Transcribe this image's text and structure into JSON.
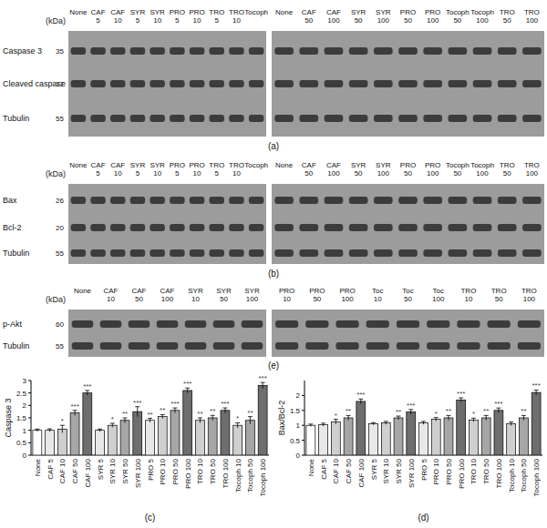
{
  "blots": [
    {
      "panel": "(a)",
      "kda_header": "(kDa)",
      "rows": [
        {
          "name": "Caspase 3",
          "kda": 35
        },
        {
          "name": "Cleaved caspase 3",
          "kda": 17
        },
        {
          "name": "Tubulin",
          "kda": 55
        }
      ],
      "lanes_left": [
        "None",
        "CAF 5",
        "CAF 10",
        "SYR 5",
        "SYR 10",
        "PRO 5",
        "PRO 10",
        "TRO 5",
        "TRO 10",
        "Tocoph"
      ],
      "lanes_right": [
        "None",
        "CAF 50",
        "CAF 100",
        "SYR 50",
        "SYR 100",
        "PRO 50",
        "PRO 100",
        "Tocoph 50",
        "Tocoph 100",
        "TRO 50",
        "TRO 100"
      ]
    },
    {
      "panel": "(b)",
      "kda_header": "(kDa)",
      "rows": [
        {
          "name": "Bax",
          "kda": 26
        },
        {
          "name": "Bcl-2",
          "kda": 20
        },
        {
          "name": "Tubulin",
          "kda": 55
        }
      ],
      "lanes_left": [
        "None",
        "CAF 5",
        "CAF 10",
        "SYR 5",
        "SYR 10",
        "PRO 5",
        "PRO 10",
        "TRO 5",
        "TRO 10",
        "Tocoph"
      ],
      "lanes_right": [
        "None",
        "CAF 50",
        "CAF 100",
        "SYR 50",
        "SYR 100",
        "PRO 50",
        "PRO 100",
        "Tocoph 50",
        "Tocoph 100",
        "TRO 50",
        "TRO 100"
      ]
    },
    {
      "panel": "(e)",
      "kda_header": "(kDa)",
      "rows": [
        {
          "name": "p-Akt",
          "kda": 60
        },
        {
          "name": "Tubulin",
          "kda": 55
        }
      ],
      "lanes_left": [
        "None",
        "CAF 10",
        "CAF 50",
        "CAF 100",
        "SYR 10",
        "SYR 50",
        "SYR 100"
      ],
      "lanes_right": [
        "PRO 10",
        "PRO 50",
        "PRO 100",
        "Toc 10",
        "Toc 50",
        "Toc 100",
        "TRO 10",
        "TRO 50",
        "TRO 100"
      ]
    }
  ],
  "chart_data": [
    {
      "type": "bar",
      "title": "(c)",
      "y_label": "Caspase 3",
      "categories": [
        "None",
        "CAF 5",
        "CAF 10",
        "CAF 50",
        "CAF 100",
        "SYR 5",
        "SYR 10",
        "SYR 50",
        "SYR 100",
        "PRO 5",
        "PRO 10",
        "PRO 50",
        "PRO 100",
        "TRO 10",
        "TRO 50",
        "TRO 100",
        "Tocoph 10",
        "Tocoph 50",
        "Tocoph 100"
      ],
      "values": [
        1.0,
        1.0,
        1.05,
        1.7,
        2.5,
        1.0,
        1.2,
        1.4,
        1.75,
        1.4,
        1.55,
        1.8,
        2.6,
        1.4,
        1.5,
        1.8,
        1.2,
        1.4,
        2.8
      ],
      "errors": [
        0.05,
        0.06,
        0.15,
        0.1,
        0.1,
        0.05,
        0.08,
        0.1,
        0.2,
        0.08,
        0.08,
        0.1,
        0.1,
        0.1,
        0.1,
        0.1,
        0.1,
        0.15,
        0.12
      ],
      "significance": [
        null,
        null,
        "*",
        "***",
        "***",
        null,
        "*",
        "**",
        "***",
        "**",
        "**",
        "***",
        "***",
        "**",
        "**",
        "***",
        "*",
        "**",
        "***"
      ],
      "colors": [
        "#ffffff",
        "#e8e8e8",
        "#cfcfcf",
        "#a6a6a6",
        "#6e6e6e",
        "#e8e8e8",
        "#cfcfcf",
        "#a6a6a6",
        "#6e6e6e",
        "#e8e8e8",
        "#cfcfcf",
        "#a6a6a6",
        "#6e6e6e",
        "#cfcfcf",
        "#a6a6a6",
        "#6e6e6e",
        "#cfcfcf",
        "#a6a6a6",
        "#6e6e6e"
      ],
      "ylim": [
        0,
        3
      ],
      "yticks": [
        0,
        0.5,
        1,
        1.5,
        2,
        2.5,
        3
      ]
    },
    {
      "type": "bar",
      "title": "(d)",
      "y_label": "Bax/Bcl-2",
      "categories": [
        "None",
        "CAF 5",
        "CAF 10",
        "CAF 50",
        "CAF 100",
        "SYR 5",
        "SYR 10",
        "SYR 50",
        "SYR 100",
        "PRO 5",
        "PRO 10",
        "PRO 50",
        "PRO 100",
        "TRO 10",
        "TRO 50",
        "TRO 100",
        "Tocoph 10",
        "Tocoph 50",
        "Tocoph 100"
      ],
      "values": [
        1.0,
        1.02,
        1.12,
        1.25,
        1.8,
        1.05,
        1.08,
        1.25,
        1.45,
        1.08,
        1.2,
        1.25,
        1.85,
        1.18,
        1.25,
        1.5,
        1.05,
        1.25,
        2.1
      ],
      "errors": [
        0.04,
        0.05,
        0.08,
        0.08,
        0.08,
        0.04,
        0.05,
        0.06,
        0.08,
        0.05,
        0.06,
        0.08,
        0.07,
        0.06,
        0.08,
        0.08,
        0.06,
        0.08,
        0.08
      ],
      "significance": [
        null,
        null,
        "*",
        "**",
        "***",
        null,
        null,
        "**",
        "***",
        null,
        "*",
        "**",
        "***",
        "*",
        "**",
        "***",
        null,
        "**",
        "***"
      ],
      "colors": [
        "#ffffff",
        "#e8e8e8",
        "#cfcfcf",
        "#a6a6a6",
        "#6e6e6e",
        "#e8e8e8",
        "#cfcfcf",
        "#a6a6a6",
        "#6e6e6e",
        "#e8e8e8",
        "#cfcfcf",
        "#a6a6a6",
        "#6e6e6e",
        "#cfcfcf",
        "#a6a6a6",
        "#6e6e6e",
        "#cfcfcf",
        "#a6a6a6",
        "#6e6e6e"
      ],
      "ylim": [
        0,
        2.5
      ],
      "yticks": [
        0,
        0.5,
        1,
        1.5,
        2
      ]
    }
  ]
}
